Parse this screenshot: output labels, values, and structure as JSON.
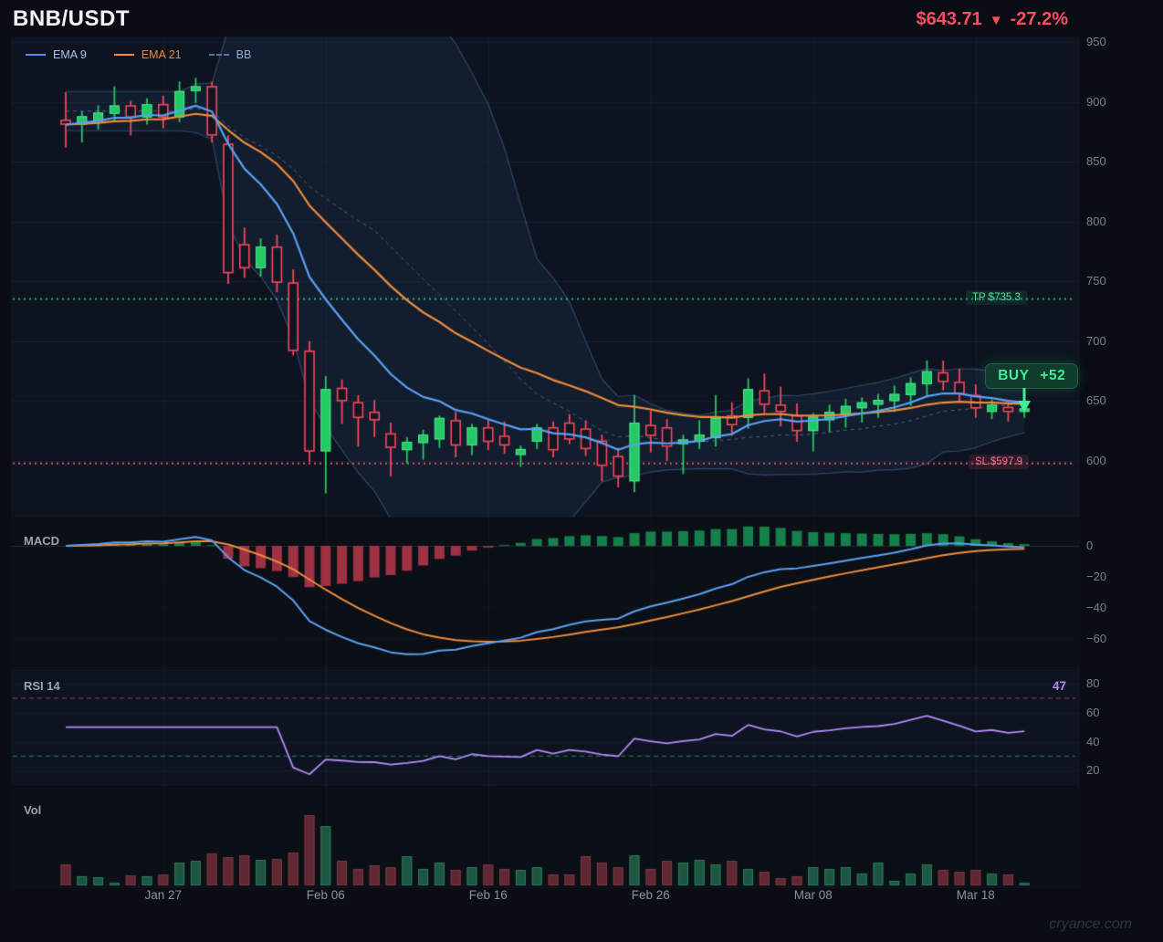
{
  "header": {
    "symbol": "BNB/USDT",
    "price": "$643.71",
    "direction": "▼",
    "change": "-27.2%"
  },
  "legend": [
    {
      "label": "EMA 9",
      "color": "#4d8ef0",
      "style": "solid"
    },
    {
      "label": "EMA 21",
      "color": "#f0883e",
      "style": "solid"
    },
    {
      "label": "BB",
      "color": "#55759f",
      "style": "dashed"
    }
  ],
  "overlays": {
    "tp": {
      "label": "TP $735.3",
      "price": 735.3,
      "color": "#2dbd7d"
    },
    "sl": {
      "label": "SL $597.9",
      "price": 597.9,
      "color": "#e64d6d"
    },
    "signal": {
      "label": "BUY",
      "value": "+52",
      "candle_index": 59,
      "color": "#3cf09a"
    }
  },
  "panels": {
    "macd": {
      "title": "MACD",
      "ticks": [
        "0",
        "−20",
        "−40",
        "−60"
      ],
      "tick_values": [
        0,
        -20,
        -40,
        -60
      ]
    },
    "rsi": {
      "title": "RSI 14",
      "value_label": "47",
      "ticks": [
        "80",
        "60",
        "40",
        "20"
      ],
      "tick_values": [
        80,
        60,
        40,
        20
      ],
      "upper_band": 70,
      "lower_band": 30
    },
    "vol": {
      "title": "Vol"
    }
  },
  "axes": {
    "y_ticks": [
      "950",
      "900",
      "850",
      "800",
      "750",
      "700",
      "650",
      "600"
    ],
    "y_tick_values": [
      950,
      900,
      850,
      800,
      750,
      700,
      650,
      600
    ],
    "x_ticks": [
      {
        "label": "Jan 27",
        "index": 6
      },
      {
        "label": "Feb 06",
        "index": 16
      },
      {
        "label": "Feb 16",
        "index": 26
      },
      {
        "label": "Feb 26",
        "index": 36
      },
      {
        "label": "Mar 08",
        "index": 46
      },
      {
        "label": "Mar 18",
        "index": 56
      }
    ]
  },
  "watermark": "cryance.com",
  "colors": {
    "background": "#0a0d13",
    "panel_light": "#0d141f",
    "panel_dark": "#0b0f16",
    "candle_up": "#23c964",
    "candle_up_edge": "#56e291",
    "candle_down": "#f6465d",
    "candle_down_fill": "#101722",
    "ema_fast": "#5ba0f4",
    "ema_slow": "#ee8b3c",
    "bb_line": "rgba(96,140,205,0.40)",
    "bb_fill": "rgba(70,115,185,0.10)",
    "bb_mid": "rgba(130,152,185,0.55)",
    "macd_hist_up": "#15804a",
    "macd_hist_down": "#9e3142",
    "rsi_line": "#b18af8",
    "rsi_upper": "rgba(214,84,106,0.60)",
    "rsi_lower": "rgba(46,178,122,0.55)",
    "vol_up": "#1d5741",
    "vol_up_edge": "#2a7a5c",
    "vol_down": "#5f2833",
    "vol_down_edge": "#7e3642"
  },
  "chart_data": {
    "type": "candlestick",
    "title": "BNB/USDT daily chart with EMA 9/21, Bollinger Bands, MACD, RSI 14 and Volume",
    "ylim": [
      555,
      955
    ],
    "indicators": {
      "ema_fast": 9,
      "ema_slow": 21,
      "bb_period": 20,
      "bb_stddev": 2,
      "macd": [
        12,
        26,
        9
      ],
      "rsi_period": 14
    },
    "dates": [
      "Jan 21",
      "Jan 22",
      "Jan 23",
      "Jan 24",
      "Jan 25",
      "Jan 26",
      "Jan 27",
      "Jan 28",
      "Jan 29",
      "Jan 30",
      "Jan 31",
      "Feb 01",
      "Feb 02",
      "Feb 03",
      "Feb 04",
      "Feb 05",
      "Feb 06",
      "Feb 07",
      "Feb 08",
      "Feb 09",
      "Feb 10",
      "Feb 11",
      "Feb 12",
      "Feb 13",
      "Feb 14",
      "Feb 15",
      "Feb 16",
      "Feb 17",
      "Feb 18",
      "Feb 19",
      "Feb 20",
      "Feb 21",
      "Feb 22",
      "Feb 23",
      "Feb 24",
      "Feb 25",
      "Feb 26",
      "Feb 27",
      "Feb 28",
      "Mar 01",
      "Mar 02",
      "Mar 03",
      "Mar 04",
      "Mar 05",
      "Mar 06",
      "Mar 07",
      "Mar 08",
      "Mar 09",
      "Mar 10",
      "Mar 11",
      "Mar 12",
      "Mar 13",
      "Mar 14",
      "Mar 15",
      "Mar 16",
      "Mar 17",
      "Mar 18",
      "Mar 19",
      "Mar 20",
      "Mar 21"
    ],
    "ohlc": [
      [
        885,
        908,
        862,
        881
      ],
      [
        881,
        892,
        866,
        888
      ],
      [
        884,
        897,
        877,
        891
      ],
      [
        890,
        913,
        884,
        897
      ],
      [
        897,
        901,
        872,
        887
      ],
      [
        887,
        903,
        881,
        898
      ],
      [
        898,
        905,
        878,
        887
      ],
      [
        887,
        917,
        883,
        909
      ],
      [
        909,
        920,
        899,
        913
      ],
      [
        913,
        917,
        866,
        872
      ],
      [
        865,
        872,
        748,
        757
      ],
      [
        781,
        795,
        753,
        761
      ],
      [
        761,
        786,
        754,
        779
      ],
      [
        779,
        789,
        741,
        749
      ],
      [
        749,
        760,
        688,
        692
      ],
      [
        692,
        700,
        599,
        608
      ],
      [
        608,
        671,
        573,
        660
      ],
      [
        661,
        668,
        631,
        650
      ],
      [
        649,
        655,
        612,
        636
      ],
      [
        641,
        651,
        620,
        634
      ],
      [
        623,
        632,
        587,
        611
      ],
      [
        609,
        620,
        598,
        616
      ],
      [
        615,
        626,
        601,
        622
      ],
      [
        618,
        638,
        611,
        636
      ],
      [
        634,
        641,
        603,
        613
      ],
      [
        613,
        631,
        605,
        628
      ],
      [
        628,
        634,
        609,
        616
      ],
      [
        621,
        633,
        606,
        613
      ],
      [
        605,
        613,
        595,
        610
      ],
      [
        616,
        631,
        610,
        628
      ],
      [
        628,
        633,
        603,
        609
      ],
      [
        632,
        639,
        614,
        618
      ],
      [
        627,
        634,
        604,
        610
      ],
      [
        617,
        622,
        583,
        596
      ],
      [
        604,
        611,
        578,
        587
      ],
      [
        583,
        655,
        574,
        632
      ],
      [
        630,
        642,
        607,
        621
      ],
      [
        628,
        635,
        600,
        612
      ],
      [
        614,
        622,
        589,
        618
      ],
      [
        616,
        634,
        610,
        622
      ],
      [
        619,
        655,
        612,
        636
      ],
      [
        638,
        649,
        621,
        630
      ],
      [
        636,
        669,
        627,
        660
      ],
      [
        659,
        673,
        640,
        647
      ],
      [
        647,
        662,
        629,
        641
      ],
      [
        638,
        648,
        616,
        625
      ],
      [
        625,
        640,
        608,
        637
      ],
      [
        634,
        647,
        624,
        641
      ],
      [
        639,
        652,
        628,
        646
      ],
      [
        644,
        653,
        632,
        649
      ],
      [
        647,
        656,
        636,
        651
      ],
      [
        650,
        663,
        641,
        656
      ],
      [
        655,
        670,
        646,
        665
      ],
      [
        664,
        684,
        655,
        675
      ],
      [
        674,
        684,
        659,
        666
      ],
      [
        666,
        677,
        649,
        656
      ],
      [
        655,
        664,
        636,
        644
      ],
      [
        641,
        651,
        635,
        647
      ],
      [
        645,
        650,
        633,
        641
      ],
      [
        641,
        653,
        636,
        644
      ]
    ],
    "volume": [
      23,
      10,
      9,
      3,
      11,
      10,
      12,
      25,
      27,
      35,
      31,
      33,
      28,
      29,
      36,
      77,
      65,
      27,
      18,
      22,
      20,
      32,
      18,
      25,
      17,
      20,
      23,
      18,
      17,
      20,
      12,
      12,
      32,
      25,
      20,
      33,
      18,
      27,
      25,
      28,
      23,
      27,
      18,
      15,
      8,
      10,
      20,
      18,
      20,
      13,
      25,
      5,
      13,
      23,
      17,
      15,
      17,
      13,
      12,
      3
    ]
  }
}
